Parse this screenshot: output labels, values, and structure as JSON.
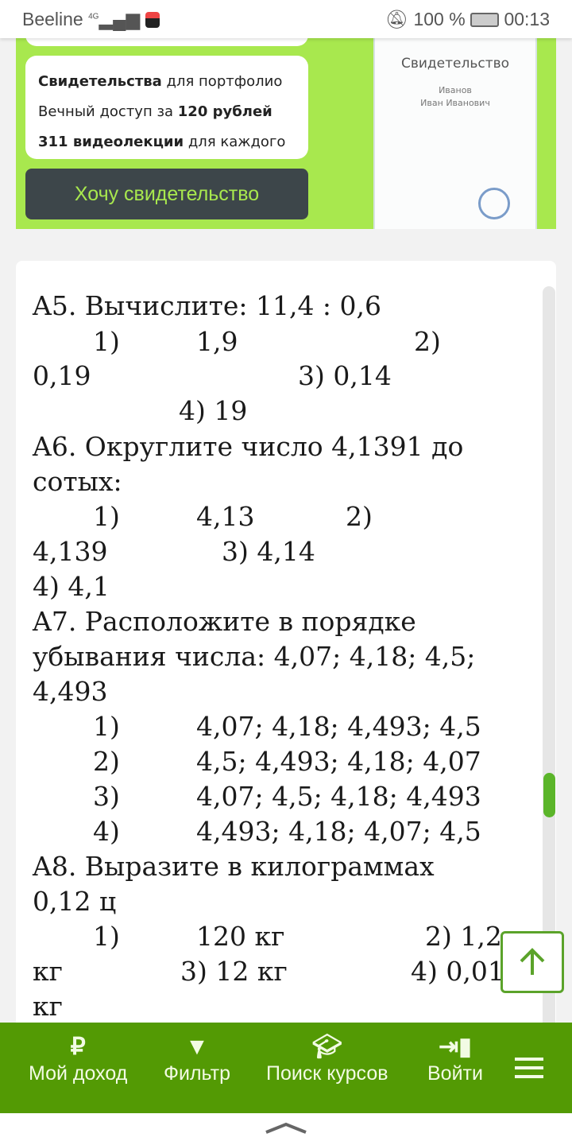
{
  "status_bar": {
    "carrier": "Beeline",
    "network": "4G",
    "battery": "100 %",
    "time": "00:13"
  },
  "promo": {
    "line1_bold": "Свидетельства",
    "line1_rest": " для портфолио",
    "line2_pre": "Вечный доступ за ",
    "line2_bold": "120 рублей",
    "line3_bold": "311 видеолекции",
    "line3_rest": " для каждого",
    "cta": "Хочу свидетельство",
    "certificate": {
      "title": "Свидетельство",
      "name1": "Иванов",
      "name2": "Иван Иванович"
    }
  },
  "content": {
    "lines": [
      "A5. Вычислите: 11,4 : 0,6",
      "1)",
      "1,9",
      "2)",
      "0,19",
      "3) 0,14",
      "4) 19",
      "A6. Округлите число 4,1391 до",
      "сотых:",
      "1)",
      "4,13",
      "2)",
      "4,139",
      "3) 4,14",
      "4) 4,1",
      "A7. Расположите в порядке",
      "убывания числа: 4,07; 4,18; 4,5;",
      "4,493",
      "1)",
      "4,07; 4,18; 4,493; 4,5",
      "2)",
      "4,5; 4,493; 4,18; 4,07",
      "3)",
      "4,07; 4,5; 4,18; 4,493",
      "4)",
      "4,493; 4,18; 4,07; 4,5",
      "A8. Выразите в килограммах",
      "0,12 ц",
      "1)",
      "120 кг",
      "2) 1,2",
      "кг",
      "3) 12 кг",
      "4) 0,01",
      "кг"
    ]
  },
  "nav": {
    "items": [
      {
        "label": "Мой доход",
        "icon": "ruble-icon"
      },
      {
        "label": "Фильтр",
        "icon": "filter-icon"
      },
      {
        "label": "Поиск курсов",
        "icon": "graduation-cap-icon"
      },
      {
        "label": "Войти",
        "icon": "login-icon"
      }
    ],
    "menu_icon": "hamburger-icon"
  },
  "colors": {
    "promo_bg": "#a8e84e",
    "nav_bg": "#539a04",
    "accent": "#5ba32a"
  }
}
